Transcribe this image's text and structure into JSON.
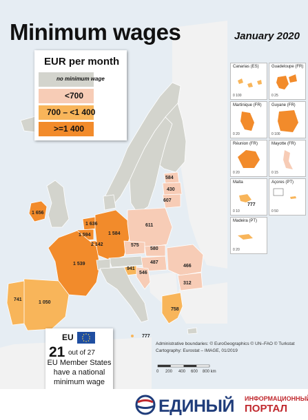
{
  "header": {
    "title": "Minimum wages",
    "subtitle": "January 2020"
  },
  "legend": {
    "title": "EUR per month",
    "items": [
      {
        "label": "no minimum wage",
        "color": "#d3d4cd"
      },
      {
        "label": "<700",
        "color": "#f7ccb6"
      },
      {
        "label": "700 – <1 400",
        "color": "#f8b55a"
      },
      {
        "label": ">=1 400",
        "color": "#f28b2b"
      }
    ]
  },
  "colors": {
    "sea": "#e6edf3",
    "non_eu": "#f2f2f2",
    "border": "#ffffff"
  },
  "insets": [
    {
      "name": "Canarias (ES)",
      "scale": "0 100"
    },
    {
      "name": "Guadeloupe (FR)",
      "scale": "0 25"
    },
    {
      "name": "Martinique (FR)",
      "scale": "0 20"
    },
    {
      "name": "Guyane (FR)",
      "scale": "0 100"
    },
    {
      "name": "Réunion (FR)",
      "scale": "0 20"
    },
    {
      "name": "Mayotte (FR)",
      "scale": "0 15"
    },
    {
      "name": "Malta",
      "scale": "0 10",
      "value": "777"
    },
    {
      "name": "Açores (PT)",
      "scale": "0 50"
    },
    {
      "name": "Madeira (PT)",
      "scale": "0 20"
    }
  ],
  "map_labels": [
    "584",
    "430",
    "607",
    "1 656",
    "1 636",
    "1 594",
    "2 142",
    "1 584",
    "611",
    "575",
    "580",
    "487",
    "466",
    "312",
    "1 539",
    "941",
    "546",
    "741",
    "1 050",
    "758",
    "777"
  ],
  "eu_box": {
    "code": "EU",
    "count": "21",
    "out_of": "out of 27",
    "line1": "EU Member States",
    "line2": "have a national",
    "line3": "minimum wage"
  },
  "attribution": {
    "line1": "Administrative boundaries: © EuroGeographics © UN–FAO © Turkstat",
    "line2": "Cartography: Eurostat – IMAGE, 01/2019"
  },
  "scale_bar": [
    "0",
    "200",
    "400",
    "600",
    "800 km"
  ],
  "footer": {
    "brand": "ЕДИНЫЙ",
    "line1": "ИНФОРМАЦИОННЫЙ",
    "line2": "ПОРТАЛ"
  }
}
